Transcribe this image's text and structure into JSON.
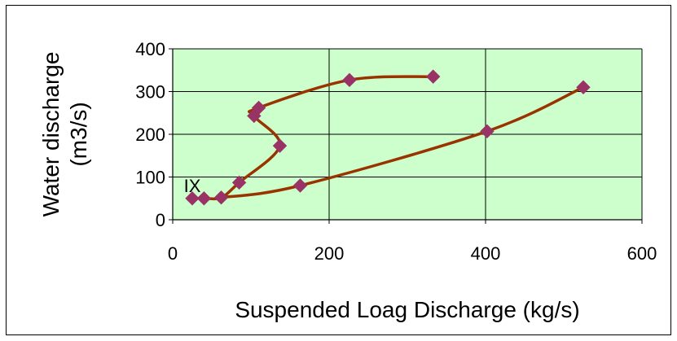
{
  "chart_data": {
    "type": "scatter",
    "title": "",
    "xlabel": "Suspended Loag Discharge (kg/s)",
    "ylabel_line1": "Water discharge",
    "ylabel_line2": "(m3/s)",
    "xlim": [
      0,
      600
    ],
    "ylim": [
      0,
      400
    ],
    "x_ticks": [
      0,
      200,
      400,
      600
    ],
    "y_ticks": [
      0,
      100,
      200,
      300,
      400
    ],
    "x_tick_labels": [
      "0",
      "200",
      "400",
      "600"
    ],
    "y_tick_labels": [
      "0",
      "100",
      "200",
      "300",
      "400"
    ],
    "grid": true,
    "plot_background": "#ccffcc",
    "line_color": "#993300",
    "marker_color": "#993366",
    "marker": "diamond",
    "annotation": "IX",
    "series": [
      {
        "points": [
          [
            25,
            50
          ],
          [
            40,
            50
          ],
          [
            62,
            52
          ],
          [
            85,
            87
          ],
          [
            137,
            173
          ],
          [
            104,
            243
          ],
          [
            110,
            262
          ],
          [
            226,
            327
          ],
          [
            333,
            335
          ]
        ]
      },
      {
        "points": [
          [
            62,
            52
          ],
          [
            163,
            80
          ],
          [
            402,
            207
          ],
          [
            525,
            310
          ]
        ]
      }
    ]
  }
}
